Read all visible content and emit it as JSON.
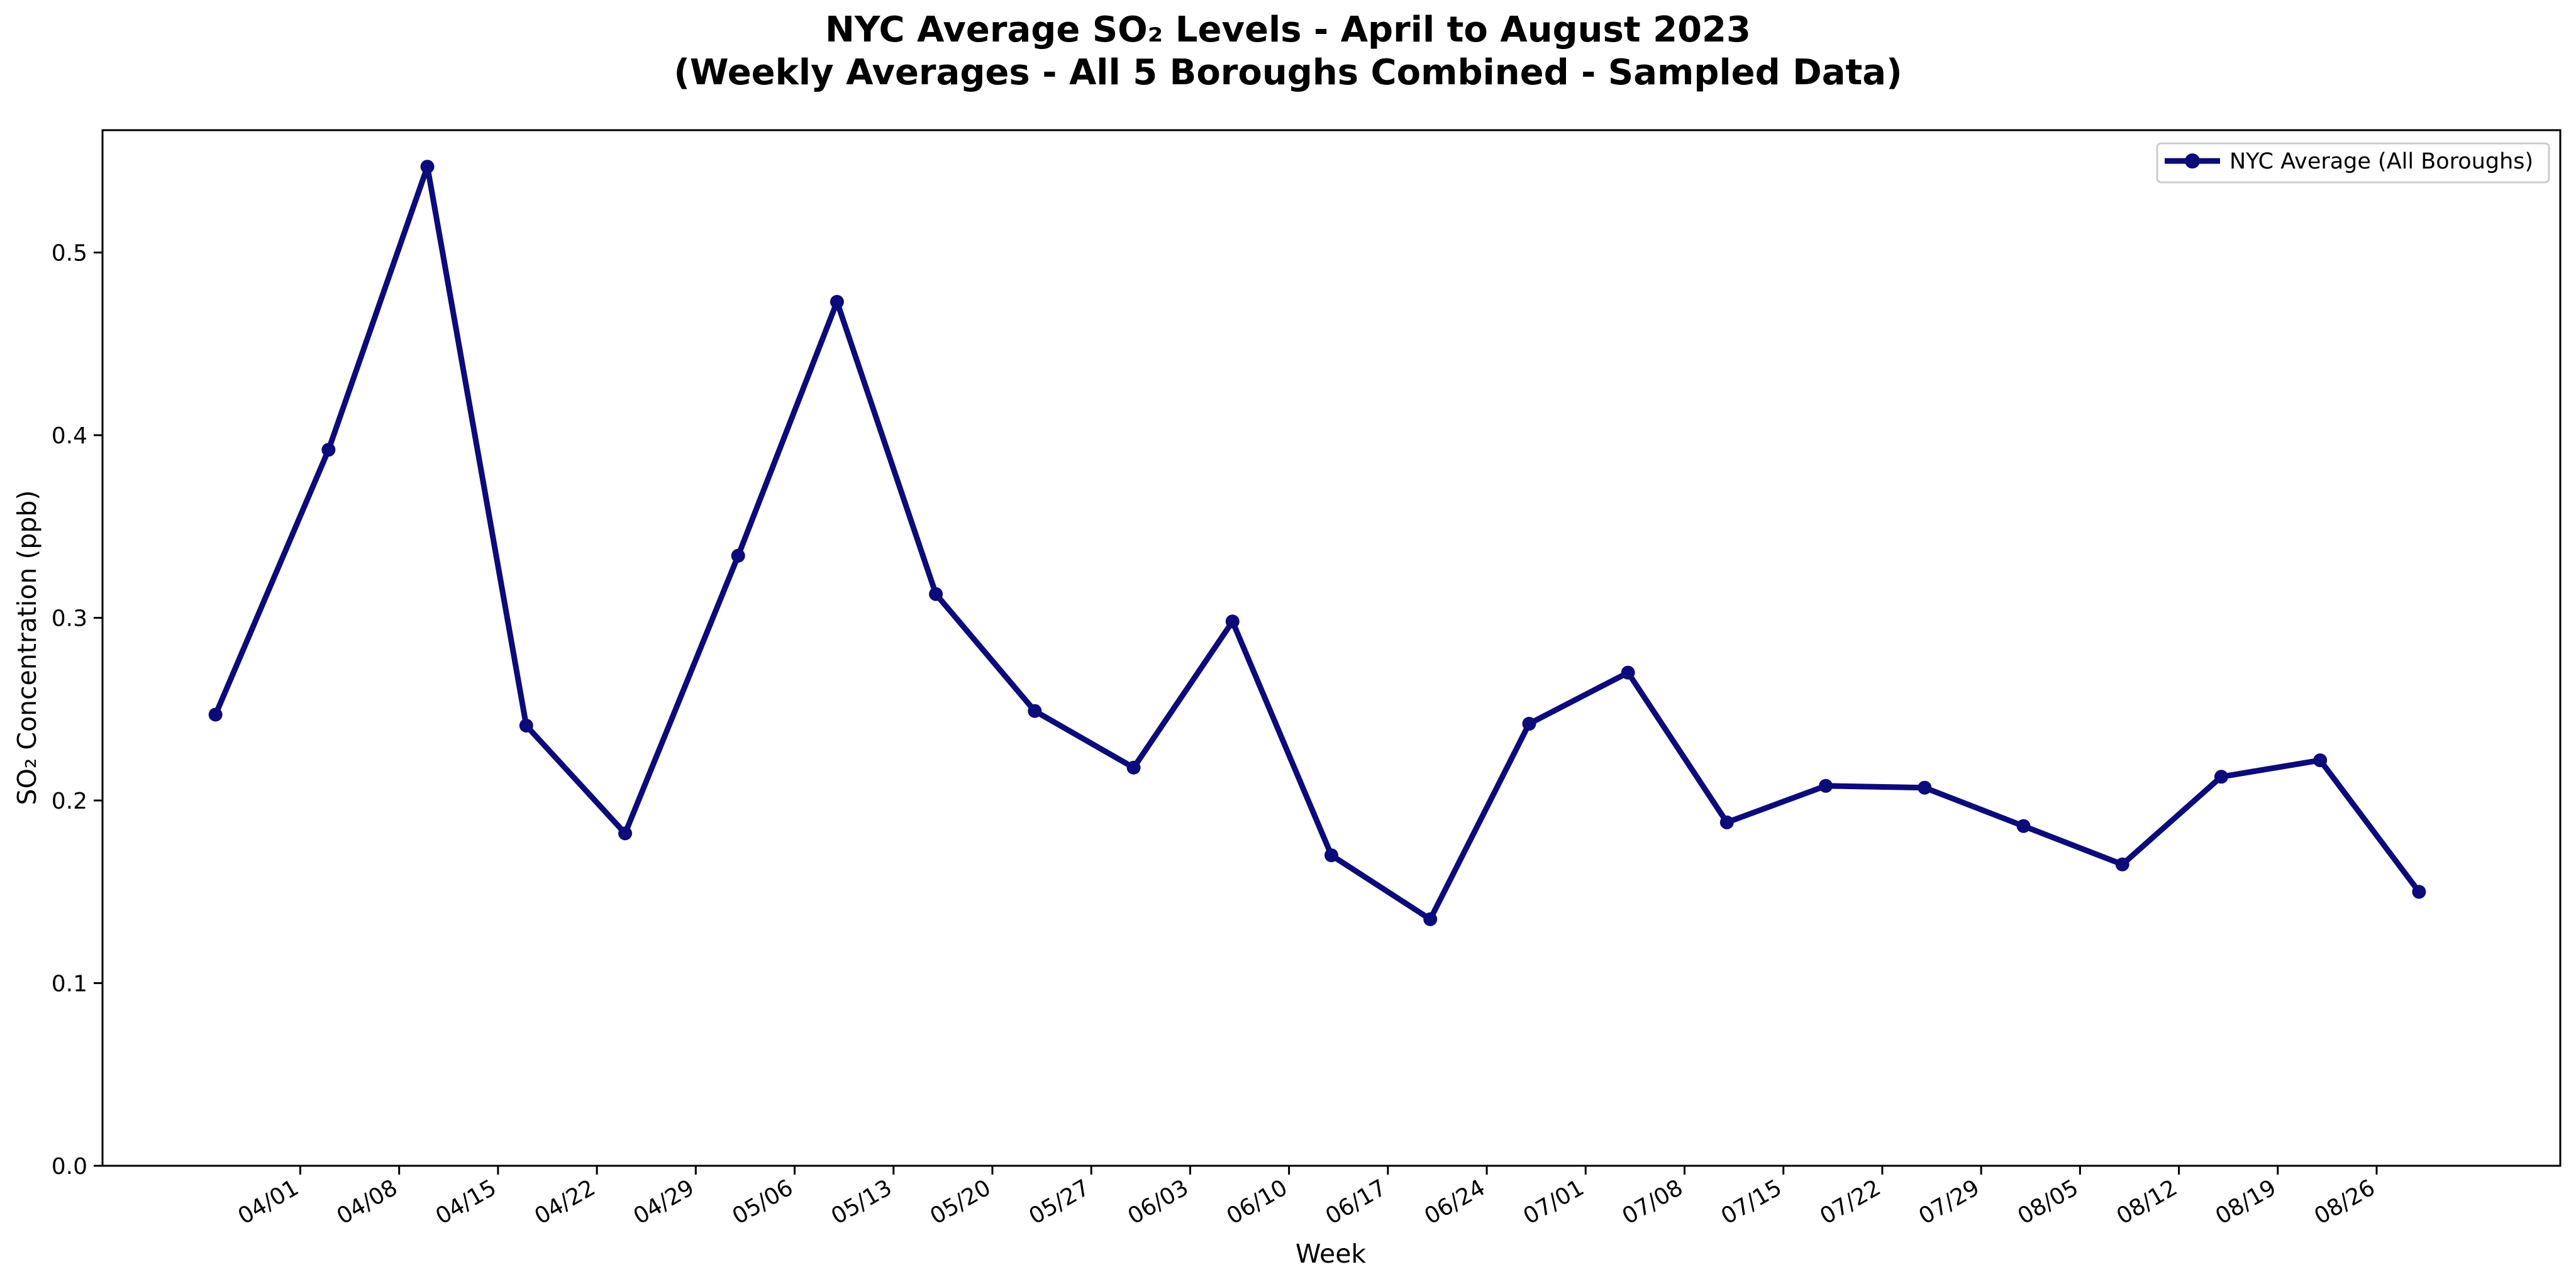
{
  "chart_data": {
    "type": "line",
    "title_line1": "NYC Average SO₂ Levels - April to August 2023",
    "title_line2": "(Weekly Averages - All 5 Boroughs Combined - Sampled Data)",
    "xlabel": "Week",
    "ylabel": "SO₂ Concentration (ppb)",
    "xlim": [
      "2023-03-18",
      "2023-09-08"
    ],
    "ylim": [
      0.0,
      0.567
    ],
    "xticks": [
      {
        "date": "2023-04-01",
        "label": "04/01"
      },
      {
        "date": "2023-04-08",
        "label": "04/08"
      },
      {
        "date": "2023-04-15",
        "label": "04/15"
      },
      {
        "date": "2023-04-22",
        "label": "04/22"
      },
      {
        "date": "2023-04-29",
        "label": "04/29"
      },
      {
        "date": "2023-05-06",
        "label": "05/06"
      },
      {
        "date": "2023-05-13",
        "label": "05/13"
      },
      {
        "date": "2023-05-20",
        "label": "05/20"
      },
      {
        "date": "2023-05-27",
        "label": "05/27"
      },
      {
        "date": "2023-06-03",
        "label": "06/03"
      },
      {
        "date": "2023-06-10",
        "label": "06/10"
      },
      {
        "date": "2023-06-17",
        "label": "06/17"
      },
      {
        "date": "2023-06-24",
        "label": "06/24"
      },
      {
        "date": "2023-07-01",
        "label": "07/01"
      },
      {
        "date": "2023-07-08",
        "label": "07/08"
      },
      {
        "date": "2023-07-15",
        "label": "07/15"
      },
      {
        "date": "2023-07-22",
        "label": "07/22"
      },
      {
        "date": "2023-07-29",
        "label": "07/29"
      },
      {
        "date": "2023-08-05",
        "label": "08/05"
      },
      {
        "date": "2023-08-12",
        "label": "08/12"
      },
      {
        "date": "2023-08-19",
        "label": "08/19"
      },
      {
        "date": "2023-08-26",
        "label": "08/26"
      }
    ],
    "yticks": [
      {
        "value": 0.0,
        "label": "0.0"
      },
      {
        "value": 0.1,
        "label": "0.1"
      },
      {
        "value": 0.2,
        "label": "0.2"
      },
      {
        "value": 0.3,
        "label": "0.3"
      },
      {
        "value": 0.4,
        "label": "0.4"
      },
      {
        "value": 0.5,
        "label": "0.5"
      }
    ],
    "grid": false,
    "legend_position": "top-right",
    "series": [
      {
        "name": "NYC Average (All Boroughs)",
        "color": "#0b0b7a",
        "marker": "circle",
        "points": [
          {
            "x": "2023-03-26",
            "y": 0.247
          },
          {
            "x": "2023-04-03",
            "y": 0.392
          },
          {
            "x": "2023-04-10",
            "y": 0.547
          },
          {
            "x": "2023-04-17",
            "y": 0.241
          },
          {
            "x": "2023-04-24",
            "y": 0.182
          },
          {
            "x": "2023-05-02",
            "y": 0.334
          },
          {
            "x": "2023-05-09",
            "y": 0.473
          },
          {
            "x": "2023-05-16",
            "y": 0.313
          },
          {
            "x": "2023-05-23",
            "y": 0.249
          },
          {
            "x": "2023-05-30",
            "y": 0.218
          },
          {
            "x": "2023-06-06",
            "y": 0.298
          },
          {
            "x": "2023-06-13",
            "y": 0.17
          },
          {
            "x": "2023-06-20",
            "y": 0.135
          },
          {
            "x": "2023-06-27",
            "y": 0.242
          },
          {
            "x": "2023-07-04",
            "y": 0.27
          },
          {
            "x": "2023-07-11",
            "y": 0.188
          },
          {
            "x": "2023-07-18",
            "y": 0.208
          },
          {
            "x": "2023-07-25",
            "y": 0.207
          },
          {
            "x": "2023-08-01",
            "y": 0.186
          },
          {
            "x": "2023-08-08",
            "y": 0.165
          },
          {
            "x": "2023-08-15",
            "y": 0.213
          },
          {
            "x": "2023-08-22",
            "y": 0.222
          },
          {
            "x": "2023-08-29",
            "y": 0.15
          }
        ]
      }
    ]
  }
}
